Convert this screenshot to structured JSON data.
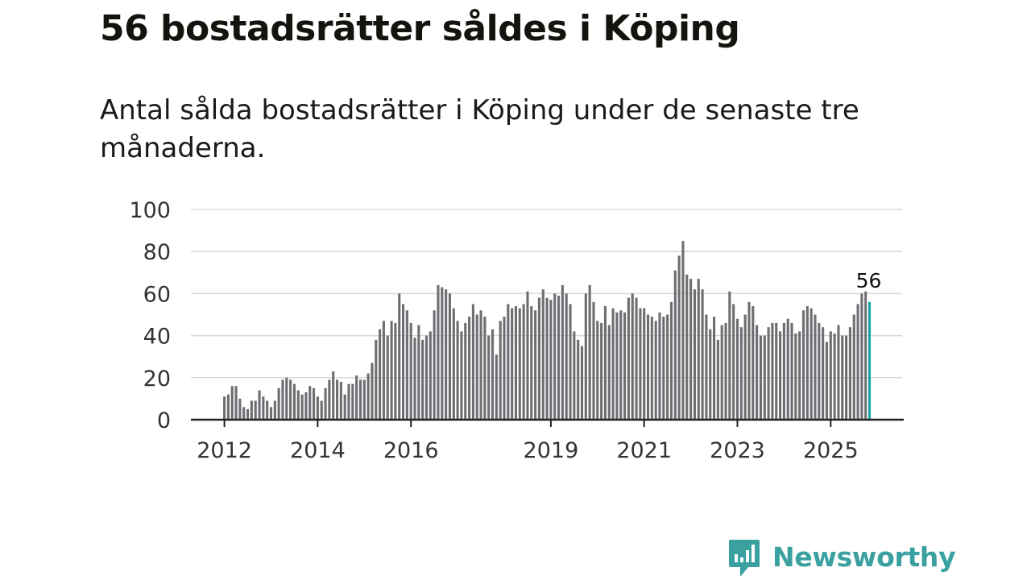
{
  "title": "56 bostadsrätter såldes i Köping",
  "subtitle": "Antal sålda bostadsrätter i Köping under de senaste tre månaderna.",
  "logo_text": "Newsworthy",
  "colors": {
    "bar": "#6e6d72",
    "highlight": "#1aa3a3",
    "grid": "#d9d9d9",
    "axis": "#222222",
    "brand": "#3aa1a0"
  },
  "chart_data": {
    "type": "bar",
    "title": "Antal sålda bostadsrätter i Köping under de senaste tre månaderna.",
    "xlabel": "",
    "ylabel": "",
    "ylim": [
      0,
      100
    ],
    "y_ticks": [
      "0",
      "20",
      "40",
      "60",
      "80",
      "100"
    ],
    "x_ticks": [
      "2012",
      "2014",
      "2016",
      "2019",
      "2021",
      "2023",
      "2025"
    ],
    "grid": true,
    "start": "2012-01",
    "highlight_label": "56",
    "values": [
      11,
      12,
      16,
      16,
      10,
      6,
      5,
      9,
      9,
      14,
      11,
      9,
      6,
      9,
      15,
      19,
      20,
      19,
      17,
      14,
      12,
      13,
      16,
      15,
      11,
      9,
      15,
      19,
      23,
      19,
      18,
      12,
      17,
      17,
      21,
      19,
      19,
      22,
      27,
      38,
      43,
      47,
      40,
      47,
      46,
      60,
      55,
      52,
      46,
      39,
      45,
      38,
      40,
      42,
      52,
      64,
      63,
      62,
      60,
      53,
      47,
      42,
      46,
      49,
      55,
      50,
      52,
      49,
      40,
      43,
      31,
      47,
      49,
      55,
      53,
      54,
      53,
      55,
      61,
      54,
      52,
      58,
      62,
      58,
      57,
      60,
      59,
      64,
      60,
      55,
      42,
      38,
      35,
      60,
      64,
      56,
      47,
      46,
      54,
      45,
      53,
      51,
      52,
      51,
      58,
      60,
      58,
      53,
      53,
      50,
      49,
      47,
      51,
      49,
      50,
      56,
      71,
      78,
      85,
      69,
      67,
      62,
      67,
      62,
      50,
      43,
      49,
      38,
      45,
      46,
      61,
      55,
      48,
      44,
      50,
      56,
      54,
      45,
      40,
      40,
      44,
      46,
      46,
      42,
      46,
      48,
      46,
      41,
      42,
      52,
      54,
      53,
      50,
      46,
      44,
      37,
      42,
      41,
      45,
      40,
      40,
      44,
      50,
      55,
      60,
      61,
      56
    ]
  }
}
